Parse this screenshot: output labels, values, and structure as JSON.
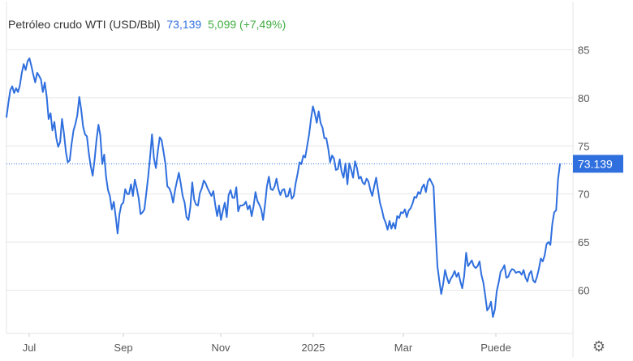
{
  "header": {
    "instrument": "Petróleo crudo WTI (USD/Bbl)",
    "last_price": "73,139",
    "change": "5,099 (+7,49%)"
  },
  "price_tag": "73.139",
  "colors": {
    "line": "#2f6fde",
    "tag_bg": "#2f6fde",
    "positive": "#3fae3f",
    "grid": "#e6e6e6",
    "axis_text": "#555555"
  },
  "icons": {
    "settings": "gear-icon"
  },
  "chart_data": {
    "type": "line",
    "title": "Petróleo crudo WTI (USD/Bbl)",
    "ylim": [
      55.5,
      90
    ],
    "yticks": [
      60,
      65,
      70,
      75,
      80,
      85
    ],
    "x_labels": [
      "Jul",
      "Sep",
      "Nov",
      "2025",
      "Mar",
      "Puede"
    ],
    "grid": "horizontal",
    "current_value": 73.139,
    "series": [
      {
        "values": [
          78.0,
          79.5,
          80.8,
          81.2,
          80.5,
          81.0,
          80.6,
          81.3,
          82.6,
          83.5,
          82.9,
          83.8,
          84.1,
          83.3,
          82.4,
          81.6,
          82.6,
          82.3,
          81.9,
          80.6,
          81.6,
          80.1,
          77.8,
          78.4,
          76.6,
          77.5,
          75.8,
          74.9,
          75.4,
          77.8,
          76.3,
          74.4,
          73.3,
          73.5,
          75.2,
          76.6,
          77.3,
          78.2,
          80.1,
          78.8,
          77.0,
          76.2,
          76.0,
          74.2,
          72.9,
          71.9,
          73.6,
          75.6,
          77.2,
          76.1,
          73.1,
          74.1,
          71.8,
          70.4,
          69.8,
          68.4,
          69.2,
          67.7,
          65.9,
          67.9,
          68.9,
          69.1,
          70.5,
          70.0,
          70.0,
          71.0,
          69.8,
          71.5,
          70.6,
          69.6,
          67.9,
          68.1,
          68.4,
          70.1,
          71.8,
          73.9,
          76.2,
          73.7,
          72.7,
          74.4,
          75.9,
          75.6,
          74.4,
          73.1,
          70.8,
          70.6,
          70.1,
          69.1,
          70.4,
          71.3,
          72.2,
          71.1,
          69.8,
          69.1,
          67.6,
          67.3,
          68.6,
          71.2,
          69.4,
          68.9,
          68.8,
          70.1,
          70.6,
          71.4,
          71.1,
          70.6,
          70.2,
          69.8,
          70.3,
          68.9,
          67.7,
          68.8,
          67.3,
          68.3,
          69.1,
          67.6,
          69.9,
          70.4,
          69.6,
          69.6,
          70.7,
          68.2,
          68.8,
          68.8,
          68.9,
          69.2,
          68.4,
          68.8,
          67.7,
          68.7,
          70.2,
          69.3,
          68.9,
          68.4,
          67.3,
          68.9,
          70.8,
          71.8,
          70.5,
          70.4,
          70.8,
          71.6,
          70.5,
          69.9,
          70.4,
          70.5,
          69.7,
          69.8,
          70.6,
          69.5,
          69.8,
          71.1,
          72.1,
          73.3,
          73.1,
          74.0,
          73.8,
          75.0,
          76.2,
          77.8,
          79.1,
          78.4,
          77.4,
          78.6,
          77.4,
          76.9,
          75.8,
          75.8,
          74.7,
          73.3,
          74.0,
          73.7,
          72.5,
          72.6,
          73.6,
          72.3,
          71.7,
          73.2,
          71.0,
          73.2,
          72.5,
          71.7,
          73.4,
          72.7,
          71.6,
          71.8,
          71.2,
          71.0,
          71.6,
          71.3,
          70.4,
          69.8,
          70.8,
          71.7,
          70.4,
          69.1,
          68.4,
          67.5,
          67.0,
          66.3,
          67.2,
          66.4,
          67.0,
          66.4,
          67.7,
          67.5,
          68.1,
          68.0,
          68.4,
          67.6,
          68.3,
          68.5,
          69.0,
          69.7,
          69.6,
          70.2,
          70.0,
          70.7,
          71.0,
          70.2,
          71.3,
          71.6,
          71.2,
          70.8,
          66.4,
          62.5,
          61.0,
          59.6,
          60.6,
          62.1,
          61.3,
          60.7,
          61.2,
          61.5,
          62.0,
          61.4,
          61.8,
          60.9,
          60.2,
          61.5,
          63.9,
          62.5,
          62.8,
          63.1,
          62.5,
          62.3,
          62.5,
          63.0,
          61.6,
          60.8,
          59.4,
          57.9,
          58.2,
          58.8,
          57.2,
          58.0,
          59.9,
          60.8,
          61.9,
          62.2,
          62.6,
          61.3,
          61.4,
          61.9,
          62.2,
          62.1,
          61.8,
          61.9,
          61.9,
          61.6,
          62.1,
          61.3,
          60.9,
          61.7,
          62.0,
          61.0,
          60.8,
          61.4,
          62.2,
          63.3,
          63.0,
          63.6,
          64.8,
          65.0,
          64.7,
          66.9,
          68.1,
          68.3,
          71.5,
          73.1
        ]
      }
    ]
  }
}
